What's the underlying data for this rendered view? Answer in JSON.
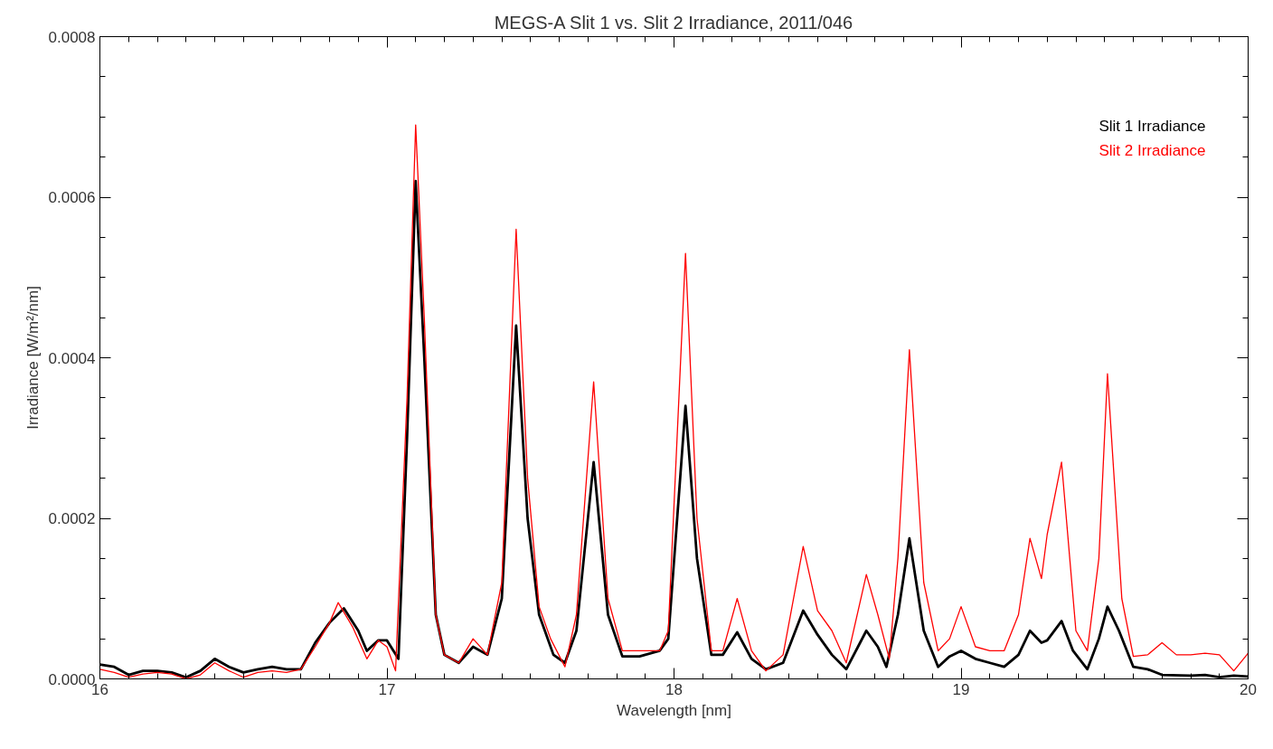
{
  "chart_data": {
    "type": "line",
    "title": "MEGS-A Slit 1 vs. Slit 2 Irradiance, 2011/046",
    "xlabel": "Wavelength [nm]",
    "ylabel": "Irradiance [W/m²/nm]",
    "xlim": [
      16,
      20
    ],
    "xticks": [
      16,
      17,
      18,
      19,
      20
    ],
    "ylim": [
      0,
      0.0008
    ],
    "yticks": [
      {
        "value": 0,
        "label": "0.0000"
      },
      {
        "value": 0.0002,
        "label": "0.0002"
      },
      {
        "value": 0.0004,
        "label": "0.0004"
      },
      {
        "value": 0.0006,
        "label": "0.0006"
      },
      {
        "value": 0.0008,
        "label": "0.0008"
      }
    ],
    "grid": false,
    "legend": "top right",
    "marker": "none",
    "line_style": "solid",
    "series": [
      {
        "name": "Slit 1 Irradiance",
        "color": "#000000",
        "x": [
          16.0,
          16.05,
          16.1,
          16.15,
          16.2,
          16.25,
          16.3,
          16.35,
          16.4,
          16.45,
          16.5,
          16.55,
          16.6,
          16.65,
          16.7,
          16.75,
          16.8,
          16.85,
          16.9,
          16.93,
          16.97,
          17.0,
          17.04,
          17.07,
          17.1,
          17.13,
          17.17,
          17.2,
          17.25,
          17.3,
          17.35,
          17.4,
          17.45,
          17.49,
          17.53,
          17.58,
          17.62,
          17.66,
          17.72,
          17.77,
          17.82,
          17.88,
          17.95,
          17.98,
          18.04,
          18.08,
          18.13,
          18.17,
          18.22,
          18.27,
          18.32,
          18.38,
          18.45,
          18.5,
          18.55,
          18.6,
          18.67,
          18.71,
          18.74,
          18.78,
          18.82,
          18.87,
          18.92,
          18.96,
          19.0,
          19.05,
          19.1,
          19.15,
          19.2,
          19.24,
          19.28,
          19.3,
          19.35,
          19.39,
          19.44,
          19.48,
          19.51,
          19.55,
          19.6,
          19.65,
          19.7,
          19.8,
          19.85,
          19.9,
          19.95,
          20.0
        ],
        "values": [
          1.8e-05,
          1.5e-05,
          5e-06,
          1e-05,
          1e-05,
          8e-06,
          2e-06,
          1e-05,
          2.5e-05,
          1.5e-05,
          8e-06,
          1.2e-05,
          1.5e-05,
          1.2e-05,
          1.2e-05,
          4.5e-05,
          7e-05,
          8.8e-05,
          6e-05,
          3.5e-05,
          4.8e-05,
          4.8e-05,
          2.5e-05,
          0.0003,
          0.00062,
          0.0004,
          8e-05,
          3e-05,
          2e-05,
          4e-05,
          3e-05,
          0.0001,
          0.00044,
          0.0002,
          8e-05,
          3e-05,
          2e-05,
          6e-05,
          0.00027,
          8e-05,
          2.8e-05,
          2.8e-05,
          3.5e-05,
          5e-05,
          0.00034,
          0.00015,
          3e-05,
          3e-05,
          5.8e-05,
          2.5e-05,
          1.2e-05,
          2e-05,
          8.5e-05,
          5.5e-05,
          3e-05,
          1.2e-05,
          6e-05,
          4e-05,
          1.5e-05,
          8e-05,
          0.000175,
          6e-05,
          1.5e-05,
          2.8e-05,
          3.5e-05,
          2.5e-05,
          2e-05,
          1.5e-05,
          3e-05,
          6e-05,
          4.5e-05,
          4.8e-05,
          7.2e-05,
          3.5e-05,
          1.2e-05,
          5e-05,
          9e-05,
          6e-05,
          1.5e-05,
          1.2e-05,
          5e-06,
          4e-06,
          5e-06,
          2e-06,
          4e-06,
          3e-06
        ]
      },
      {
        "name": "Slit 2 Irradiance",
        "color": "#ff0000",
        "x": [
          16.0,
          16.05,
          16.1,
          16.15,
          16.2,
          16.25,
          16.3,
          16.35,
          16.4,
          16.45,
          16.5,
          16.55,
          16.6,
          16.65,
          16.7,
          16.75,
          16.8,
          16.83,
          16.88,
          16.93,
          16.97,
          17.0,
          17.03,
          17.07,
          17.1,
          17.13,
          17.17,
          17.2,
          17.25,
          17.3,
          17.35,
          17.4,
          17.45,
          17.49,
          17.53,
          17.57,
          17.62,
          17.66,
          17.72,
          17.77,
          17.82,
          17.88,
          17.95,
          17.98,
          18.04,
          18.08,
          18.13,
          18.17,
          18.22,
          18.27,
          18.32,
          18.38,
          18.45,
          18.5,
          18.55,
          18.6,
          18.67,
          18.71,
          18.75,
          18.78,
          18.82,
          18.87,
          18.92,
          18.96,
          19.0,
          19.05,
          19.1,
          19.15,
          19.2,
          19.24,
          19.28,
          19.3,
          19.35,
          19.4,
          19.44,
          19.48,
          19.51,
          19.56,
          19.6,
          19.65,
          19.7,
          19.75,
          19.8,
          19.85,
          19.9,
          19.95,
          20.0
        ],
        "values": [
          1.2e-05,
          8e-06,
          2e-06,
          6e-06,
          8e-06,
          6e-06,
          0.0,
          5e-06,
          2e-05,
          1e-05,
          2e-06,
          8e-06,
          1e-05,
          8e-06,
          1.2e-05,
          4e-05,
          7e-05,
          9.5e-05,
          6.5e-05,
          2.5e-05,
          4.8e-05,
          4e-05,
          1e-05,
          0.00035,
          0.00069,
          0.00045,
          8e-05,
          3e-05,
          2e-05,
          5e-05,
          3e-05,
          0.00012,
          0.00056,
          0.00025,
          9e-05,
          5e-05,
          1.5e-05,
          8e-05,
          0.00037,
          0.0001,
          3.5e-05,
          3.5e-05,
          3.5e-05,
          6e-05,
          0.00053,
          0.0002,
          3.5e-05,
          3.5e-05,
          0.0001,
          3.5e-05,
          1e-05,
          3e-05,
          0.000165,
          8.5e-05,
          6e-05,
          2e-05,
          0.00013,
          8e-05,
          2.5e-05,
          0.00015,
          0.00041,
          0.00012,
          3.5e-05,
          5e-05,
          9e-05,
          4e-05,
          3.5e-05,
          3.5e-05,
          8e-05,
          0.000175,
          0.000125,
          0.00018,
          0.00027,
          6e-05,
          3.5e-05,
          0.00015,
          0.00038,
          0.0001,
          2.8e-05,
          3e-05,
          4.5e-05,
          3e-05,
          3e-05,
          3.2e-05,
          3e-05,
          1e-05,
          3.2e-05
        ]
      }
    ]
  }
}
